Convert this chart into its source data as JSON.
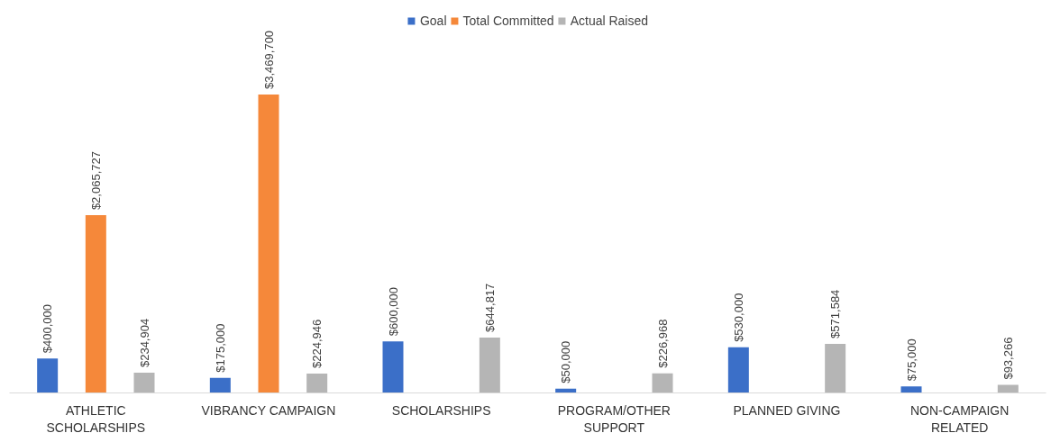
{
  "chart_data": {
    "type": "bar",
    "categories": [
      "ATHLETIC SCHOLARSHIPS",
      "VIBRANCY CAMPAIGN",
      "SCHOLARSHIPS",
      "PROGRAM/OTHER SUPPORT",
      "PLANNED GIVING",
      "NON-CAMPAIGN RELATED"
    ],
    "series": [
      {
        "name": "Goal",
        "color": "#3b6fc8",
        "values": [
          400000,
          175000,
          600000,
          50000,
          530000,
          75000
        ],
        "value_labels": [
          "$400,000",
          "$175,000",
          "$600,000",
          "$50,000",
          "$530,000",
          "$75,000"
        ]
      },
      {
        "name": "Total Committed",
        "color": "#f5883a",
        "values": [
          2065727,
          3469700,
          null,
          null,
          null,
          null
        ],
        "value_labels": [
          "$2,065,727",
          "$3,469,700",
          null,
          null,
          null,
          null
        ]
      },
      {
        "name": "Actual Raised",
        "color": "#b5b5b5",
        "values": [
          234904,
          224946,
          644817,
          226968,
          571584,
          93266
        ],
        "value_labels": [
          "$234,904",
          "$224,946",
          "$644,817",
          "$226,968",
          "$571,584",
          "$93,266"
        ]
      }
    ],
    "legend": "top"
  }
}
